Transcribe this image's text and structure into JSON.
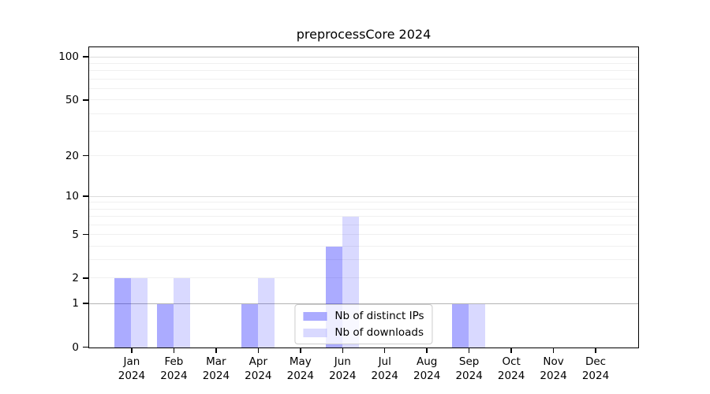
{
  "chart_data": {
    "type": "bar",
    "title": "preprocessCore 2024",
    "categories": [
      "Jan 2024",
      "Feb 2024",
      "Mar 2024",
      "Apr 2024",
      "May 2024",
      "Jun 2024",
      "Jul 2024",
      "Aug 2024",
      "Sep 2024",
      "Oct 2024",
      "Nov 2024",
      "Dec 2024"
    ],
    "series": [
      {
        "name": "Nb of distinct IPs",
        "color": "rgba(0,0,255,0.33)",
        "values": [
          2,
          1,
          0,
          1,
          0,
          4,
          0,
          0,
          1,
          0,
          0,
          0
        ]
      },
      {
        "name": "Nb of downloads",
        "color": "rgba(0,0,255,0.15)",
        "values": [
          2,
          2,
          0,
          2,
          0,
          7,
          0,
          0,
          1,
          0,
          0,
          0
        ]
      }
    ],
    "y_axis": {
      "scale": "log1p",
      "ticks": [
        0,
        1,
        2,
        5,
        10,
        20,
        50,
        100
      ],
      "max": 116,
      "gridlines": {
        "strong": [
          1
        ],
        "medium": [
          10,
          100
        ],
        "light": [
          2,
          3,
          4,
          5,
          6,
          7,
          8,
          9,
          20,
          30,
          40,
          50,
          60,
          70,
          80,
          90
        ]
      },
      "gridline_colors": {
        "strong": "#b3b3b3",
        "medium": "#dcdcdc",
        "light": "#f0f0f0"
      }
    },
    "xlabel": "",
    "ylabel": "",
    "grid": true,
    "legend_position": "lower center"
  }
}
